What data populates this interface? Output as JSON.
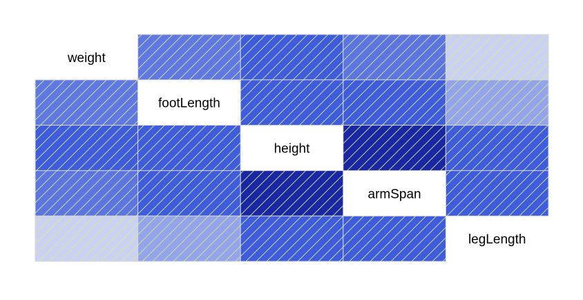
{
  "chart_data": {
    "type": "heatmap",
    "subtype": "correlogram-upper-and-lower-shaded",
    "variables": [
      "weight",
      "footLength",
      "height",
      "armSpan",
      "legLength"
    ],
    "diagonal": "variable-name-labels",
    "cell_pattern": "diagonal-hatching",
    "color_scale": {
      "low": "#e3e8f8",
      "mid": "#3e5cdc",
      "high": "#131f9c"
    },
    "intensity_matrix": [
      [
        null,
        0.62,
        0.78,
        0.64,
        0.12
      ],
      [
        0.62,
        null,
        0.78,
        0.78,
        0.38
      ],
      [
        0.78,
        0.78,
        null,
        0.97,
        0.78
      ],
      [
        0.64,
        0.78,
        0.97,
        null,
        0.78
      ],
      [
        0.12,
        0.38,
        0.78,
        0.78,
        null
      ]
    ]
  }
}
